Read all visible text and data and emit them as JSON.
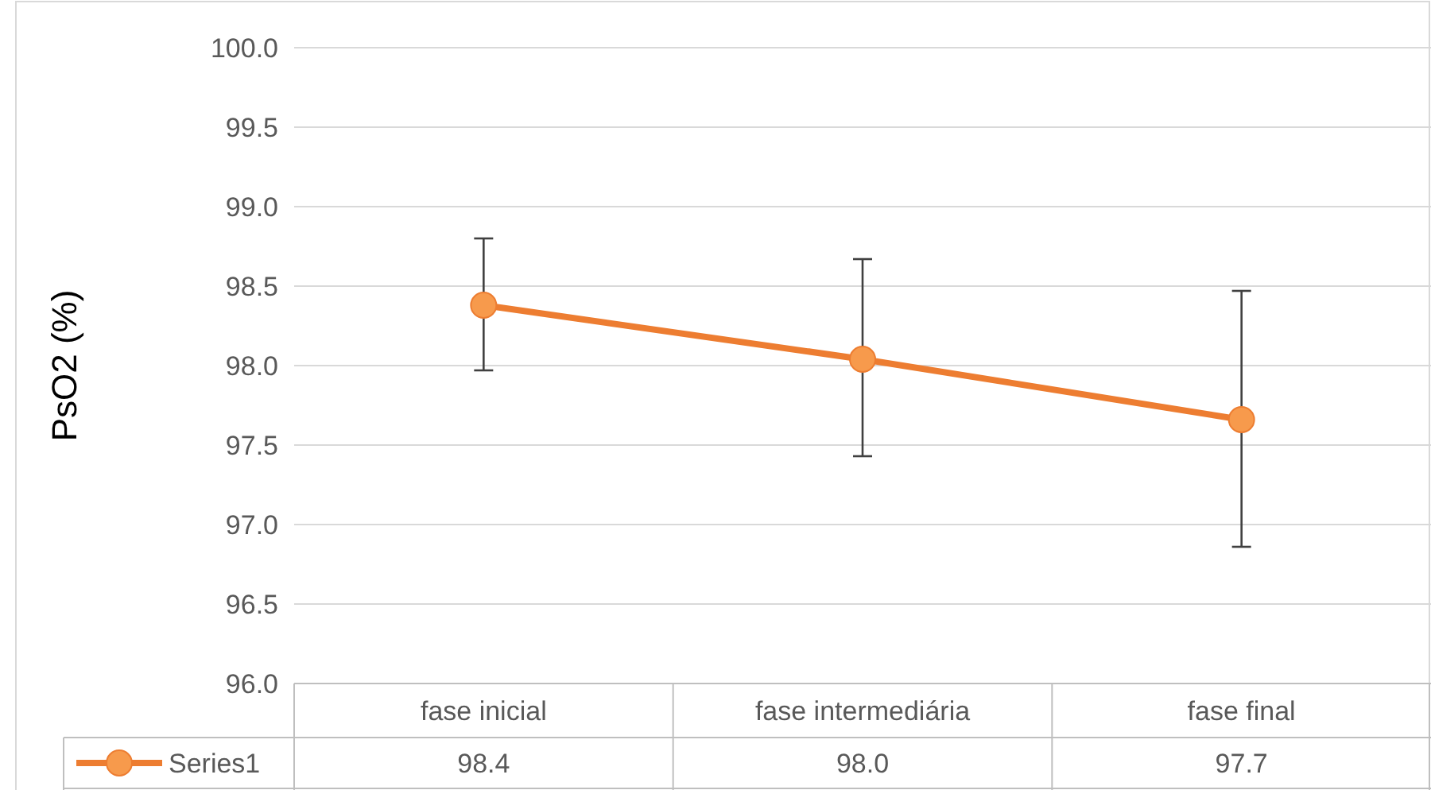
{
  "chart_data": {
    "type": "line",
    "ylabel": "PsO2  (%)",
    "categories": [
      "fase inicial",
      "fase intermediária",
      "fase final"
    ],
    "series": [
      {
        "name": "Series1",
        "color": "#ed7d31",
        "values": [
          98.38,
          98.04,
          97.66
        ],
        "value_labels": [
          "98.4",
          "98.0",
          "97.7"
        ],
        "errors": [
          [
            97.97,
            98.8
          ],
          [
            97.43,
            98.67
          ],
          [
            96.86,
            98.47
          ]
        ]
      }
    ],
    "ylim": [
      96,
      100
    ],
    "yticks": [
      {
        "value": 96,
        "label": "96.0"
      },
      {
        "value": 96.5,
        "label": "96.5"
      },
      {
        "value": 97,
        "label": "97.0"
      },
      {
        "value": 97.5,
        "label": "97.5"
      },
      {
        "value": 98,
        "label": "98.0"
      },
      {
        "value": 98.5,
        "label": "98.5"
      },
      {
        "value": 99,
        "label": "99.0"
      },
      {
        "value": 99.5,
        "label": "99.5"
      },
      {
        "value": 100,
        "label": "100.0"
      }
    ],
    "grid": "y",
    "legend": "bottom",
    "marker": "circle",
    "line_style": "solid"
  }
}
